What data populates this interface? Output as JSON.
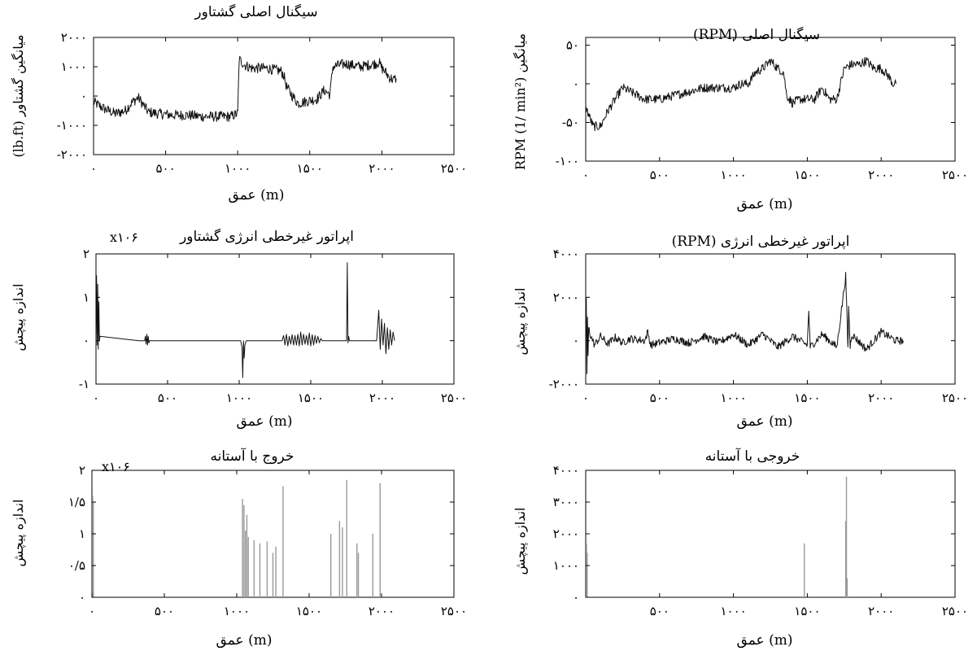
{
  "chart_data": [
    {
      "id": "torque-original",
      "type": "line",
      "title": "سیگنال اصلی گشتاور",
      "xlabel": "(m) عمق",
      "ylabel": "میانگین گشتاور (lb.ft)",
      "xlim": [
        0,
        2500
      ],
      "ylim": [
        -2000,
        2000
      ],
      "xticks": [
        "۰",
        "۵۰۰",
        "۱۰۰۰",
        "۱۵۰۰",
        "۲۰۰۰",
        "۲۵۰۰"
      ],
      "xtick_values": [
        0,
        500,
        1000,
        1500,
        2000,
        2500
      ],
      "yticks": [
        "۲۰۰۰",
        "۱۰۰۰",
        "۰",
        "-۱۰۰۰",
        "-۲۰۰۰"
      ],
      "ytick_values": [
        2000,
        1000,
        0,
        -1000,
        -2000
      ],
      "multiplier": "",
      "series": [
        {
          "x": [
            0,
            30,
            80,
            150,
            220,
            260,
            310,
            380,
            450,
            550,
            650,
            750,
            850,
            950,
            1000,
            1010,
            1050,
            1100,
            1150,
            1200,
            1250,
            1300,
            1320,
            1340,
            1380,
            1420,
            1460,
            1500,
            1550,
            1600,
            1640,
            1660,
            1700,
            1750,
            1800,
            1850,
            1900,
            1950,
            1980,
            2000,
            2020,
            2050,
            2080,
            2100
          ],
          "y": [
            -200,
            -300,
            -450,
            -600,
            -500,
            -250,
            -50,
            -550,
            -600,
            -650,
            -650,
            -700,
            -700,
            -700,
            -600,
            1250,
            1050,
            950,
            950,
            950,
            900,
            850,
            700,
            300,
            0,
            -250,
            -200,
            -150,
            -100,
            200,
            50,
            1000,
            1050,
            1100,
            1050,
            1000,
            1050,
            1100,
            1150,
            950,
            850,
            650,
            550,
            600
          ],
          "noise": 180
        }
      ]
    },
    {
      "id": "rpm-original",
      "type": "line",
      "title": "سیگنال اصلی (RPM)",
      "xlabel": "(m) عمق",
      "ylabel": "میانگین RPM (1/ min²)",
      "xlim": [
        0,
        2500
      ],
      "ylim": [
        -100,
        60
      ],
      "xticks": [
        "۰",
        "۵۰۰",
        "۱۰۰۰",
        "۱۵۰۰",
        "۲۰۰۰",
        "۲۵۰۰"
      ],
      "xtick_values": [
        0,
        500,
        1000,
        1500,
        2000,
        2500
      ],
      "yticks": [
        "۵۰",
        "۰",
        "-۵۰",
        "-۱۰۰"
      ],
      "ytick_values": [
        50,
        0,
        -50,
        -100
      ],
      "multiplier": "",
      "series": [
        {
          "x": [
            0,
            50,
            100,
            150,
            200,
            250,
            300,
            400,
            500,
            600,
            700,
            800,
            900,
            1000,
            1050,
            1100,
            1150,
            1200,
            1250,
            1300,
            1340,
            1360,
            1400,
            1450,
            1500,
            1550,
            1600,
            1650,
            1700,
            1750,
            1800,
            1850,
            1900,
            1950,
            2000,
            2050,
            2080,
            2100
          ],
          "y": [
            -30,
            -55,
            -55,
            -35,
            -20,
            -5,
            -10,
            -20,
            -20,
            -15,
            -10,
            -5,
            -5,
            -5,
            0,
            0,
            15,
            20,
            30,
            20,
            15,
            -15,
            -25,
            -20,
            -20,
            -20,
            -5,
            -20,
            -20,
            20,
            25,
            25,
            30,
            20,
            20,
            10,
            0,
            0
          ],
          "noise": 6
        }
      ]
    },
    {
      "id": "torque-teo",
      "type": "line",
      "title": "اپراتور غیرخطی انرژی گشتاور",
      "xlabel": "(m) عمق",
      "ylabel": "اندازه پیچش",
      "xlim": [
        0,
        2500
      ],
      "ylim": [
        -1,
        2
      ],
      "xticks": [
        "۰",
        "۵۰۰",
        "۱۰۰۰",
        "۱۵۰۰",
        "۲۰۰۰",
        "۲۵۰۰"
      ],
      "xtick_values": [
        0,
        500,
        1000,
        1500,
        2000,
        2500
      ],
      "yticks": [
        "۲",
        "۱",
        "۰",
        "-۱"
      ],
      "ytick_values": [
        2,
        1,
        0,
        -1
      ],
      "multiplier": "x۱۰۶",
      "series": [
        {
          "x": [
            0,
            4,
            8,
            12,
            16,
            20,
            24,
            28,
            300,
            340,
            345,
            350,
            355,
            360,
            365,
            370,
            375,
            380,
            1010,
            1020,
            1025,
            1030,
            1035,
            1040,
            1050,
            1300,
            1310,
            1320,
            1330,
            1340,
            1350,
            1360,
            1370,
            1380,
            1390,
            1400,
            1410,
            1420,
            1430,
            1440,
            1450,
            1460,
            1470,
            1480,
            1490,
            1500,
            1510,
            1520,
            1530,
            1540,
            1550,
            1560,
            1570,
            1580,
            1750,
            1755,
            1760,
            1765,
            1770,
            1960,
            1975,
            1985,
            1995,
            2005,
            2015,
            2025,
            2035,
            2045,
            2055,
            2065,
            2075,
            2085
          ],
          "y": [
            0,
            1.5,
            -0.1,
            1.3,
            -0.2,
            0.9,
            0,
            0.1,
            0,
            0,
            0.1,
            -0.08,
            0.15,
            -0.1,
            0.1,
            -0.05,
            0,
            0,
            0,
            -0.15,
            -0.85,
            0.0,
            -0.4,
            -0.1,
            0,
            0,
            0.12,
            -0.1,
            0.15,
            -0.12,
            0.1,
            -0.08,
            0.14,
            -0.1,
            0.12,
            -0.1,
            0.15,
            -0.12,
            0.2,
            -0.1,
            0.15,
            -0.08,
            0.12,
            -0.1,
            0.18,
            -0.12,
            0.14,
            -0.1,
            0.12,
            -0.06,
            0.1,
            -0.05,
            0.05,
            0,
            0,
            1.8,
            -0.05,
            0.1,
            0,
            0,
            0.7,
            -0.2,
            0.5,
            -0.1,
            0.4,
            -0.3,
            0.3,
            -0.2,
            0.25,
            -0.1,
            0.2,
            0
          ],
          "noise": 0
        }
      ]
    },
    {
      "id": "rpm-teo",
      "type": "line",
      "title": "اپراتور غیرخطی انرژی (RPM)",
      "xlabel": "(m) عمق",
      "ylabel": "اندازه پیچش",
      "xlim": [
        0,
        2500
      ],
      "ylim": [
        -2000,
        4000
      ],
      "xticks": [
        "۰",
        "۵۰۰",
        "۱۰۰۰",
        "۱۵۰۰",
        "۲۰۰۰",
        "۲۵۰۰"
      ],
      "xtick_values": [
        0,
        500,
        1000,
        1500,
        2000,
        2500
      ],
      "yticks": [
        "۴۰۰۰",
        "۲۰۰۰",
        "۰",
        "-۲۰۰۰"
      ],
      "ytick_values": [
        4000,
        2000,
        0,
        -2000
      ],
      "multiplier": "",
      "series": [
        {
          "x": [
            0,
            4,
            8,
            12,
            16,
            20,
            30,
            60,
            100,
            150,
            200,
            250,
            300,
            400,
            420,
            440,
            600,
            700,
            800,
            900,
            1000,
            1100,
            1200,
            1300,
            1400,
            1500,
            1510,
            1520,
            1600,
            1700,
            1760,
            1770,
            1775,
            1780,
            1790,
            1800,
            1900,
            2000,
            2100,
            2150
          ],
          "y": [
            0,
            1800,
            -1500,
            1000,
            -700,
            600,
            300,
            -200,
            200,
            -150,
            150,
            -100,
            100,
            0,
            400,
            -200,
            100,
            -100,
            200,
            -100,
            300,
            -200,
            300,
            -300,
            200,
            -200,
            1400,
            -300,
            300,
            -300,
            3000,
            800,
            -400,
            1500,
            -300,
            300,
            -400,
            400,
            0,
            0
          ],
          "noise": 180
        }
      ]
    },
    {
      "id": "torque-threshold",
      "type": "bar",
      "title": "خروج با آستانه",
      "xlabel": "(m) عمق",
      "ylabel": "اندازه پیچش",
      "xlim": [
        0,
        2500
      ],
      "ylim": [
        0,
        2
      ],
      "xticks": [
        "۰",
        "۵۰۰",
        "۱۰۰۰",
        "۱۵۰۰",
        "۲۰۰۰",
        "۲۵۰۰"
      ],
      "xtick_values": [
        0,
        500,
        1000,
        1500,
        2000,
        2500
      ],
      "yticks": [
        "۲",
        "۱/۵",
        "۱",
        "۰/۵",
        "۰"
      ],
      "ytick_values": [
        2,
        1.5,
        1,
        0.5,
        0
      ],
      "multiplier": "x۱۰۶",
      "x": [
        5,
        10,
        1040,
        1050,
        1060,
        1070,
        1080,
        1120,
        1160,
        1210,
        1250,
        1270,
        1320,
        1650,
        1710,
        1730,
        1760,
        1830,
        1840,
        1940,
        1990
      ],
      "values": [
        1.6,
        1.5,
        1.55,
        1.45,
        1.05,
        1.3,
        0.95,
        0.9,
        0.85,
        0.88,
        0.7,
        0.8,
        1.75,
        1.0,
        1.2,
        1.1,
        1.85,
        0.85,
        0.7,
        1.0,
        1.8
      ]
    },
    {
      "id": "rpm-threshold",
      "type": "bar",
      "title": "خروجی با آستانه",
      "xlabel": "(m) عمق",
      "ylabel": "اندازه پیچش",
      "xlim": [
        0,
        2500
      ],
      "ylim": [
        0,
        4000
      ],
      "xticks": [
        "۵۰۰",
        "۱۰۰۰",
        "۱۵۰۰",
        "۲۰۰۰",
        "۲۵۰۰"
      ],
      "xtick_values": [
        500,
        1000,
        1500,
        2000,
        2500
      ],
      "yticks": [
        "۴۰۰۰",
        "۳۰۰۰",
        "۲۰۰۰",
        "۱۰۰۰",
        "۰"
      ],
      "ytick_values": [
        4000,
        3000,
        2000,
        1000,
        0
      ],
      "multiplier": "",
      "x": [
        5,
        10,
        1480,
        1760,
        1765,
        1770
      ],
      "values": [
        1700,
        1400,
        1700,
        2400,
        3800,
        600
      ]
    }
  ]
}
